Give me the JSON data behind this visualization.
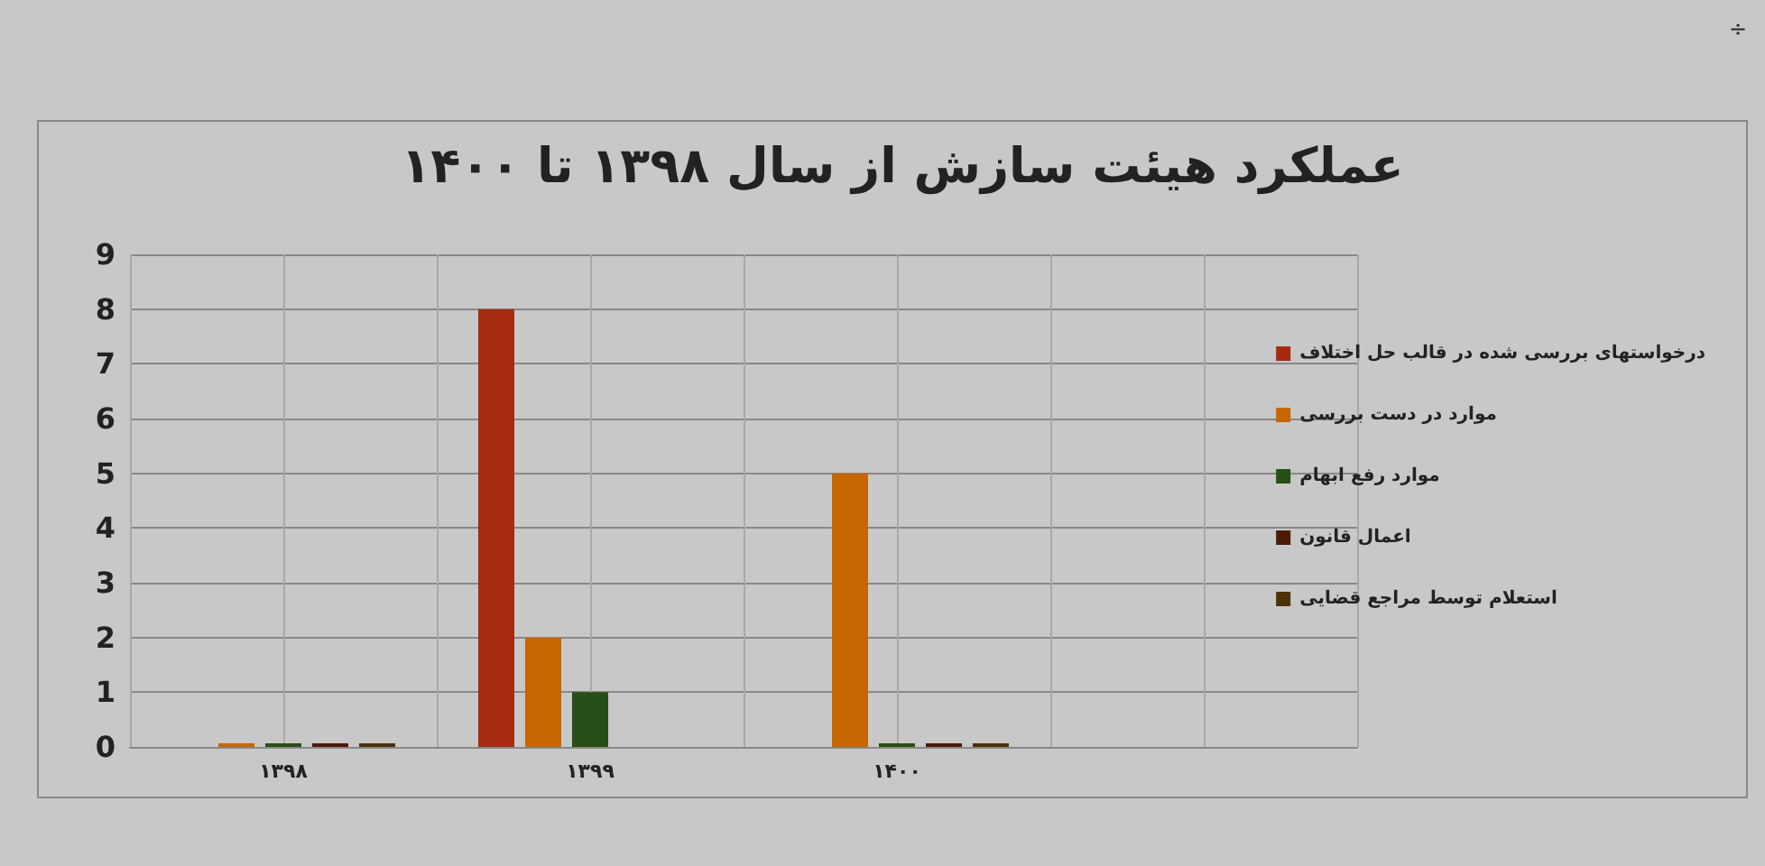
{
  "chart_data": {
    "type": "bar",
    "title": "عملکرد هیئت سازش از سال ۱۳۹۸ تا ۱۴۰۰",
    "categories": [
      "۱۳۹۸",
      "۱۳۹۹",
      "۱۴۰۰",
      null
    ],
    "series": [
      {
        "name": "درخواستهای بررسی شده در قالب حل اختلاف",
        "color": "#a52a10",
        "values": [
          null,
          8,
          null,
          null
        ]
      },
      {
        "name": "موارد در دست بررسی",
        "color": "#c66600",
        "values": [
          0,
          2,
          5,
          null
        ]
      },
      {
        "name": "موارد رفع ابهام",
        "color": "#284e18",
        "values": [
          0,
          1,
          0,
          null
        ]
      },
      {
        "name": "اعمال قانون",
        "color": "#4c1a06",
        "values": [
          0,
          null,
          0,
          null
        ]
      },
      {
        "name": "استعلام توسط مراجع قضایی",
        "color": "#4c3206",
        "values": [
          0,
          null,
          0,
          null
        ]
      }
    ],
    "ylim": [
      0,
      9
    ],
    "yticks": [
      0,
      1,
      2,
      3,
      4,
      5,
      6,
      7,
      8,
      9
    ],
    "grid": true,
    "legend": "right",
    "annotations": [
      "÷"
    ]
  }
}
